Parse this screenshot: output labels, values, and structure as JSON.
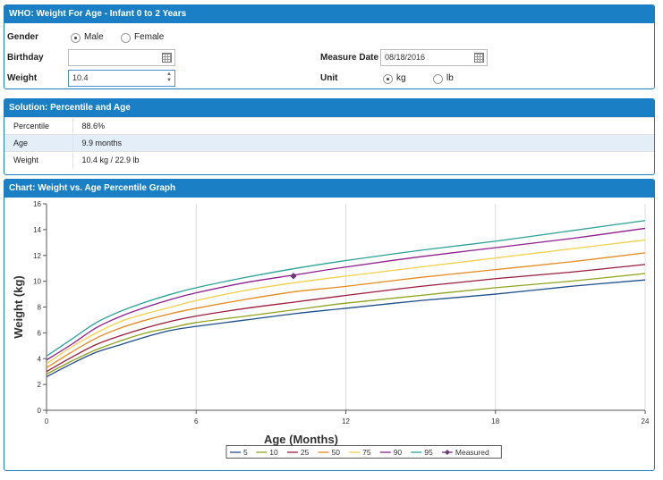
{
  "form": {
    "title": "WHO: Weight For Age - Infant 0 to 2 Years",
    "gender_label": "Gender",
    "gender_options": [
      "Male",
      "Female"
    ],
    "gender_selected": "Male",
    "birthday_label": "Birthday",
    "birthday_value": "",
    "weight_label": "Weight",
    "weight_value": "10.4",
    "measure_date_label": "Measure Date",
    "measure_date_value": "08/18/2016",
    "unit_label": "Unit",
    "unit_options": [
      "kg",
      "lb"
    ],
    "unit_selected": "kg"
  },
  "solution": {
    "title": "Solution: Percentile and Age",
    "rows": [
      {
        "key": "Percentile",
        "value": "88.6%"
      },
      {
        "key": "Age",
        "value": "9.9 months"
      },
      {
        "key": "Weight",
        "value": "10.4 kg / 22.9 lb"
      }
    ]
  },
  "chart": {
    "title": "Chart: Weight vs. Age Percentile Graph"
  },
  "chart_data": {
    "type": "line",
    "xlabel": "Age (Months)",
    "ylabel": "Weight (kg)",
    "xlim": [
      0,
      24
    ],
    "ylim": [
      0,
      16
    ],
    "xticks": [
      0,
      6,
      12,
      18,
      24
    ],
    "yticks": [
      0,
      2,
      4,
      6,
      8,
      10,
      12,
      14,
      16
    ],
    "grid": "vertical",
    "legend": "bottom-center",
    "x": [
      0,
      1,
      2,
      3,
      4,
      5,
      6,
      8,
      10,
      12,
      15,
      18,
      21,
      24
    ],
    "series": [
      {
        "name": "5",
        "color": "#1f4e8c",
        "values": [
          2.6,
          3.6,
          4.5,
          5.1,
          5.7,
          6.2,
          6.5,
          7.0,
          7.5,
          7.9,
          8.5,
          9.0,
          9.6,
          10.1
        ]
      },
      {
        "name": "10",
        "color": "#8fa31e",
        "values": [
          2.8,
          3.8,
          4.7,
          5.4,
          6.0,
          6.4,
          6.8,
          7.3,
          7.8,
          8.3,
          8.9,
          9.5,
          10.0,
          10.6
        ]
      },
      {
        "name": "25",
        "color": "#9c1c3c",
        "values": [
          3.0,
          4.1,
          5.1,
          5.8,
          6.4,
          6.9,
          7.3,
          7.9,
          8.4,
          8.9,
          9.6,
          10.2,
          10.7,
          11.3
        ]
      },
      {
        "name": "50",
        "color": "#e58a1f",
        "values": [
          3.3,
          4.5,
          5.6,
          6.4,
          7.0,
          7.5,
          7.9,
          8.6,
          9.2,
          9.6,
          10.3,
          10.9,
          11.5,
          12.2
        ]
      },
      {
        "name": "75",
        "color": "#f3cf4a",
        "values": [
          3.6,
          4.9,
          6.0,
          6.9,
          7.5,
          8.0,
          8.5,
          9.3,
          9.9,
          10.4,
          11.1,
          11.8,
          12.5,
          13.2
        ]
      },
      {
        "name": "90",
        "color": "#8e1e8e",
        "values": [
          3.9,
          5.1,
          6.4,
          7.3,
          8.0,
          8.6,
          9.1,
          9.9,
          10.5,
          11.1,
          11.9,
          12.6,
          13.3,
          14.1
        ]
      },
      {
        "name": "95",
        "color": "#2aa198",
        "values": [
          4.2,
          5.5,
          6.8,
          7.7,
          8.4,
          9.0,
          9.5,
          10.3,
          11.0,
          11.6,
          12.4,
          13.1,
          13.9,
          14.7
        ]
      }
    ],
    "measured": {
      "name": "Measured",
      "color": "#6b3a7a",
      "x": 9.9,
      "y": 10.4
    }
  }
}
